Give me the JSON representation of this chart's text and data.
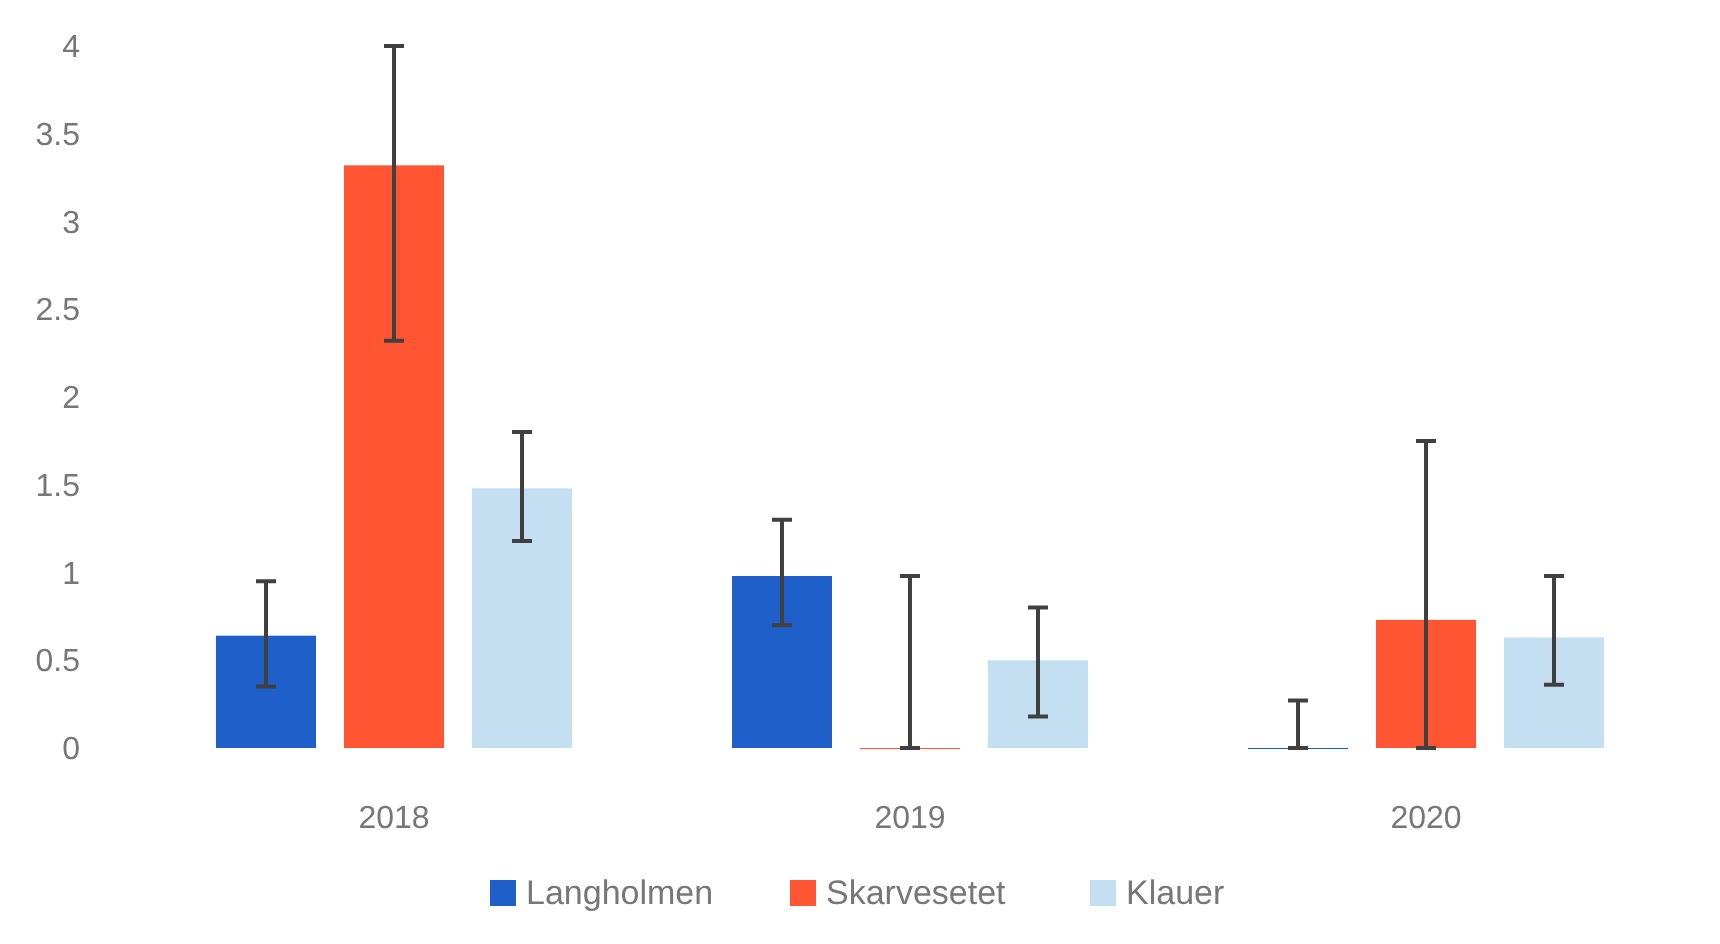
{
  "chart_data": {
    "type": "bar",
    "categories": [
      "2018",
      "2019",
      "2020"
    ],
    "ylim": [
      0,
      4
    ],
    "yticks": [
      0,
      0.5,
      1,
      1.5,
      2,
      2.5,
      3,
      3.5,
      4
    ],
    "grid": false,
    "legend": "bottom",
    "series": [
      {
        "name": "Langholmen",
        "color": "#1f5fc9",
        "values": [
          0.64,
          0.98,
          0
        ],
        "errors": [
          [
            0.35,
            0.95
          ],
          [
            0.7,
            1.3
          ],
          [
            0,
            0.27
          ]
        ]
      },
      {
        "name": "Skarvesetet",
        "color": "#ff5533",
        "values": [
          3.32,
          0,
          0.73
        ],
        "errors": [
          [
            2.32,
            4.0
          ],
          [
            0,
            0.98
          ],
          [
            0,
            1.75
          ]
        ]
      },
      {
        "name": "Klauer",
        "color": "#c5dff2",
        "values": [
          1.48,
          0.5,
          0.63
        ],
        "errors": [
          [
            1.18,
            1.8
          ],
          [
            0.18,
            0.8
          ],
          [
            0.36,
            0.98
          ]
        ]
      }
    ]
  }
}
